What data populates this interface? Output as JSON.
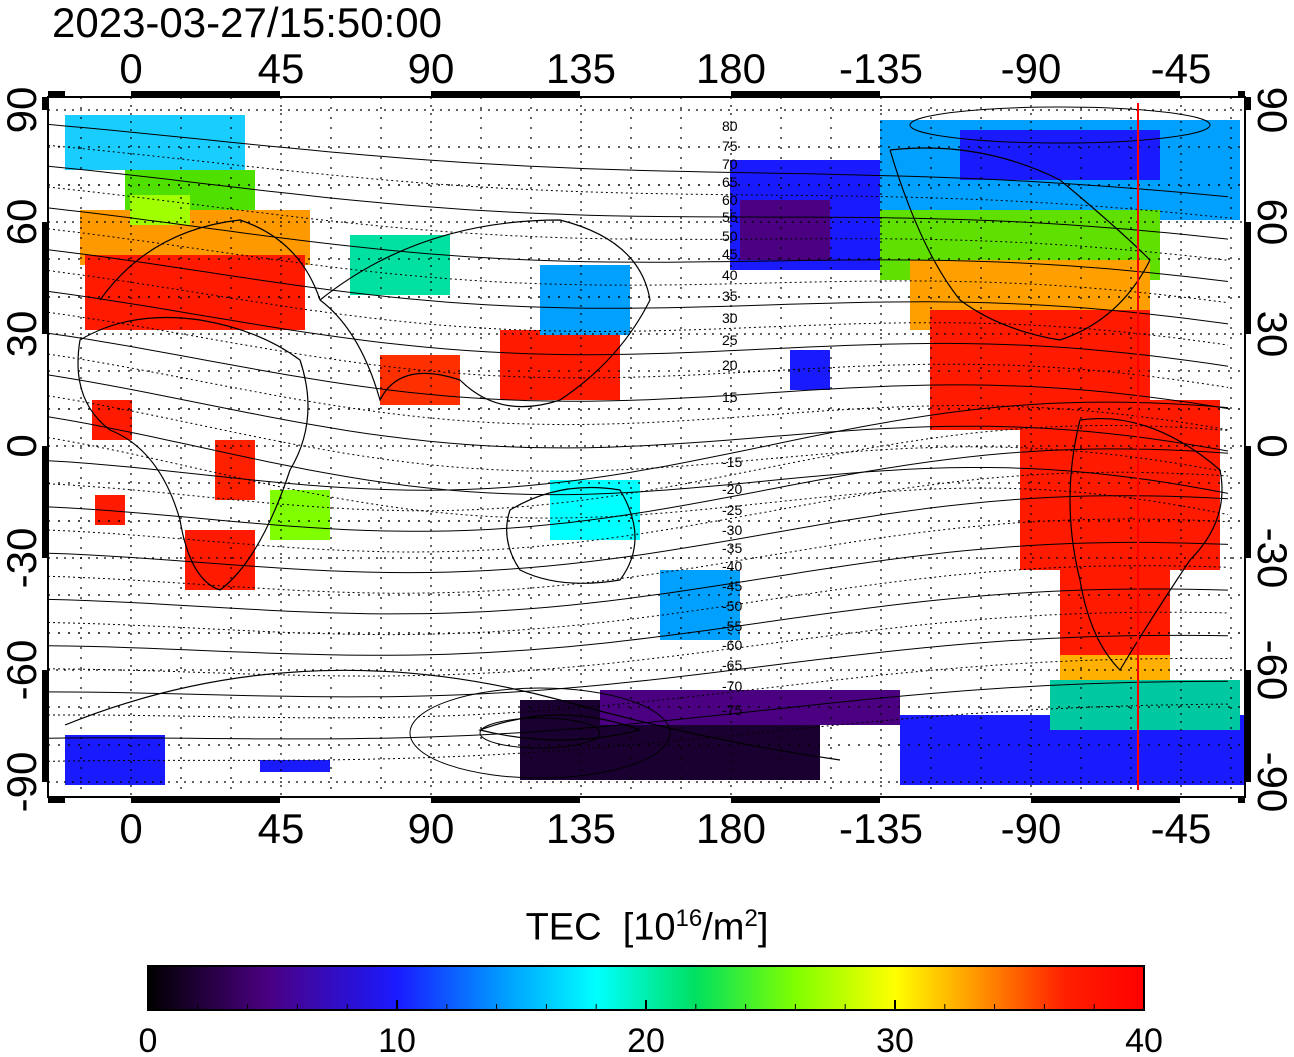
{
  "timestamp": "2023-03-27/15:50:00",
  "lon_ticks": [
    "0",
    "45",
    "90",
    "135",
    "180",
    "-135",
    "-90",
    "-45"
  ],
  "lat_ticks": [
    "90",
    "60",
    "30",
    "0",
    "-30",
    "-60",
    "-90"
  ],
  "colorbar": {
    "title_main": "TEC",
    "title_unit_a": "[10",
    "title_unit_sup1": "16",
    "title_unit_b": "/m",
    "title_unit_sup2": "2",
    "title_unit_c": "]",
    "min": 0,
    "max": 40,
    "tick_labels": [
      "0",
      "10",
      "20",
      "30",
      "40"
    ],
    "colors": [
      "#000000",
      "#4b0082",
      "#1a1aff",
      "#00a0ff",
      "#00ffff",
      "#00e060",
      "#80ff00",
      "#ffff00",
      "#ff9900",
      "#ff2000",
      "#ff0000"
    ]
  },
  "contour_labels_north": [
    "80",
    "75",
    "70",
    "65",
    "60",
    "55",
    "50",
    "45",
    "40",
    "35",
    "30",
    "25",
    "20",
    "15"
  ],
  "contour_labels_south": [
    "-15",
    "-20",
    "-25",
    "-30",
    "-35",
    "-40",
    "-45",
    "-50",
    "-55",
    "-60",
    "-65",
    "-70",
    "-75"
  ],
  "marker_line_color": "#ff0000"
}
